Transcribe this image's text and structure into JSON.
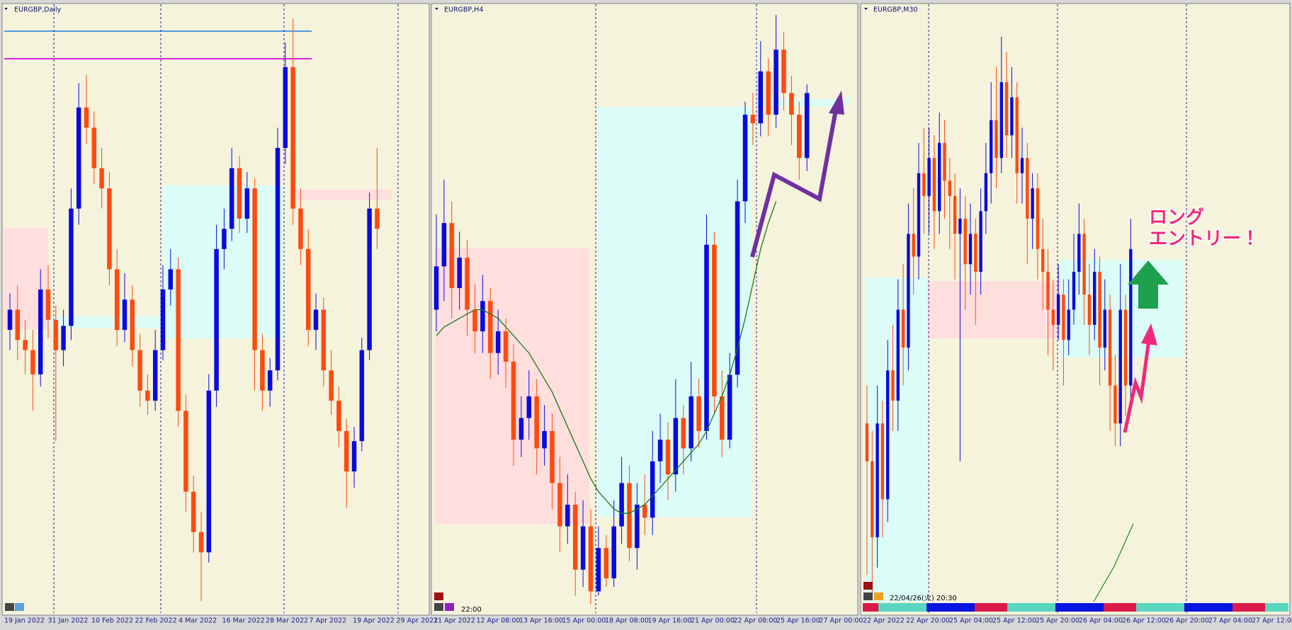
{
  "panels": [
    {
      "title": "EURGBP,Daily",
      "x_labels": [
        "19 Jan 2022",
        "31 Jan 2022",
        "10 Feb 2022",
        "22 Feb 2022",
        "4 Mar 2022",
        "16 Mar 2022",
        "28 Mar 2022",
        "7 Apr 2022",
        "19 Apr 2022",
        "29 Apr 2022"
      ],
      "ylim": [
        0.82,
        0.85
      ],
      "candles": [
        [
          0.834,
          0.8358,
          0.833,
          0.835
        ],
        [
          0.835,
          0.8362,
          0.8325,
          0.8335
        ],
        [
          0.8335,
          0.8345,
          0.8318,
          0.833
        ],
        [
          0.833,
          0.834,
          0.83,
          0.8318
        ],
        [
          0.8318,
          0.837,
          0.8312,
          0.836
        ],
        [
          0.836,
          0.8372,
          0.8336,
          0.8345
        ],
        [
          0.8345,
          0.8352,
          0.8285,
          0.833
        ],
        [
          0.833,
          0.835,
          0.8322,
          0.8342
        ],
        [
          0.8342,
          0.841,
          0.8335,
          0.84
        ],
        [
          0.84,
          0.8462,
          0.8392,
          0.845
        ],
        [
          0.845,
          0.8466,
          0.8432,
          0.844
        ],
        [
          0.844,
          0.8448,
          0.8412,
          0.842
        ],
        [
          0.842,
          0.843,
          0.84,
          0.841
        ],
        [
          0.841,
          0.8418,
          0.8362,
          0.837
        ],
        [
          0.837,
          0.838,
          0.8332,
          0.834
        ],
        [
          0.834,
          0.8368,
          0.8334,
          0.8355
        ],
        [
          0.8355,
          0.8362,
          0.8322,
          0.833
        ],
        [
          0.833,
          0.8338,
          0.8302,
          0.831
        ],
        [
          0.831,
          0.8318,
          0.8298,
          0.8305
        ],
        [
          0.8305,
          0.834,
          0.83,
          0.833
        ],
        [
          0.833,
          0.8372,
          0.8325,
          0.836
        ],
        [
          0.836,
          0.838,
          0.8352,
          0.837
        ],
        [
          0.837,
          0.8376,
          0.8292,
          0.83
        ],
        [
          0.83,
          0.8308,
          0.825,
          0.826
        ],
        [
          0.826,
          0.8268,
          0.823,
          0.824
        ],
        [
          0.824,
          0.825,
          0.8206,
          0.823
        ],
        [
          0.823,
          0.8318,
          0.8225,
          0.831
        ],
        [
          0.831,
          0.8392,
          0.8302,
          0.838
        ],
        [
          0.838,
          0.84,
          0.837,
          0.839
        ],
        [
          0.839,
          0.843,
          0.8384,
          0.842
        ],
        [
          0.842,
          0.8426,
          0.8388,
          0.8395
        ],
        [
          0.8395,
          0.8418,
          0.8388,
          0.841
        ],
        [
          0.841,
          0.8415,
          0.831,
          0.833
        ],
        [
          0.833,
          0.8338,
          0.83,
          0.831
        ],
        [
          0.831,
          0.8326,
          0.8302,
          0.832
        ],
        [
          0.832,
          0.844,
          0.8315,
          0.843
        ],
        [
          0.843,
          0.8482,
          0.8422,
          0.847
        ],
        [
          0.847,
          0.8494,
          0.8392,
          0.84
        ],
        [
          0.84,
          0.841,
          0.8372,
          0.838
        ],
        [
          0.838,
          0.839,
          0.8332,
          0.834
        ],
        [
          0.834,
          0.8358,
          0.833,
          0.835
        ],
        [
          0.835,
          0.8356,
          0.8312,
          0.832
        ],
        [
          0.832,
          0.833,
          0.8298,
          0.8305
        ],
        [
          0.8305,
          0.8312,
          0.8282,
          0.829
        ],
        [
          0.829,
          0.8296,
          0.8252,
          0.827
        ],
        [
          0.827,
          0.8292,
          0.8262,
          0.8285
        ],
        [
          0.8285,
          0.8336,
          0.828,
          0.833
        ],
        [
          0.833,
          0.8408,
          0.8325,
          0.84
        ],
        [
          0.84,
          0.843,
          0.838,
          0.839
        ]
      ]
    },
    {
      "title": "EURGBP,H4",
      "x_labels": [
        "11 Apr 2022",
        "12 Apr 08:00",
        "13 Apr 16:00",
        "15 Apr 00:00",
        "18 Apr 08:00",
        "19 Apr 16:00",
        "21 Apr 00:00",
        "22 Apr 08:00",
        "25 Apr 16:00",
        "27 Apr 00:00"
      ],
      "time_label": "22:00",
      "ylim": [
        0.828,
        0.842
      ],
      "candles": [
        [
          0.835,
          0.8372,
          0.8345,
          0.836
        ],
        [
          0.836,
          0.838,
          0.8352,
          0.837
        ],
        [
          0.837,
          0.8375,
          0.8348,
          0.8355
        ],
        [
          0.8355,
          0.8368,
          0.835,
          0.8362
        ],
        [
          0.8362,
          0.8366,
          0.8344,
          0.835
        ],
        [
          0.835,
          0.8356,
          0.834,
          0.8345
        ],
        [
          0.8345,
          0.8358,
          0.834,
          0.8352
        ],
        [
          0.8352,
          0.8355,
          0.8334,
          0.834
        ],
        [
          0.834,
          0.835,
          0.8335,
          0.8345
        ],
        [
          0.8345,
          0.8348,
          0.8332,
          0.8338
        ],
        [
          0.8338,
          0.8342,
          0.8314,
          0.832
        ],
        [
          0.832,
          0.833,
          0.8316,
          0.8325
        ],
        [
          0.8325,
          0.8336,
          0.832,
          0.833
        ],
        [
          0.833,
          0.8334,
          0.8312,
          0.8318
        ],
        [
          0.8318,
          0.8328,
          0.8314,
          0.8322
        ],
        [
          0.8322,
          0.8326,
          0.8304,
          0.831
        ],
        [
          0.831,
          0.8316,
          0.8294,
          0.83
        ],
        [
          0.83,
          0.8312,
          0.8296,
          0.8305
        ],
        [
          0.8305,
          0.8308,
          0.8284,
          0.829
        ],
        [
          0.829,
          0.8306,
          0.8286,
          0.83
        ],
        [
          0.83,
          0.8304,
          0.8282,
          0.8285
        ],
        [
          0.8285,
          0.83,
          0.8284,
          0.8295
        ],
        [
          0.8295,
          0.8298,
          0.8286,
          0.8288
        ],
        [
          0.8288,
          0.8306,
          0.8286,
          0.83
        ],
        [
          0.83,
          0.8316,
          0.8296,
          0.831
        ],
        [
          0.831,
          0.8314,
          0.8292,
          0.8295
        ],
        [
          0.8295,
          0.831,
          0.829,
          0.8305
        ],
        [
          0.8305,
          0.8312,
          0.8298,
          0.8302
        ],
        [
          0.8302,
          0.8322,
          0.8298,
          0.8315
        ],
        [
          0.8315,
          0.8326,
          0.831,
          0.832
        ],
        [
          0.832,
          0.8324,
          0.8306,
          0.8312
        ],
        [
          0.8312,
          0.8334,
          0.8308,
          0.8325
        ],
        [
          0.8325,
          0.8328,
          0.8312,
          0.8318
        ],
        [
          0.8318,
          0.8338,
          0.8315,
          0.833
        ],
        [
          0.833,
          0.8334,
          0.8318,
          0.8322
        ],
        [
          0.8322,
          0.8372,
          0.832,
          0.8365
        ],
        [
          0.8365,
          0.8368,
          0.8326,
          0.833
        ],
        [
          0.833,
          0.8336,
          0.8316,
          0.832
        ],
        [
          0.832,
          0.834,
          0.8318,
          0.8335
        ],
        [
          0.8335,
          0.838,
          0.8332,
          0.8375
        ],
        [
          0.8375,
          0.8398,
          0.837,
          0.8395
        ],
        [
          0.8395,
          0.84,
          0.8388,
          0.8393
        ],
        [
          0.8393,
          0.8412,
          0.839,
          0.8405
        ],
        [
          0.8405,
          0.8408,
          0.839,
          0.8395
        ],
        [
          0.8395,
          0.8418,
          0.8392,
          0.841
        ],
        [
          0.841,
          0.8414,
          0.8396,
          0.84
        ],
        [
          0.84,
          0.8404,
          0.8388,
          0.8395
        ],
        [
          0.8395,
          0.8398,
          0.838,
          0.8385
        ],
        [
          0.8385,
          0.8402,
          0.8382,
          0.84
        ]
      ],
      "ma": [
        0.8344,
        0.8346,
        0.8347,
        0.8348,
        0.8349,
        0.835,
        0.835,
        0.8349,
        0.8348,
        0.8346,
        0.8344,
        0.8342,
        0.834,
        0.8337,
        0.8334,
        0.8331,
        0.8327,
        0.8323,
        0.8319,
        0.8315,
        0.8311,
        0.8308,
        0.8306,
        0.8304,
        0.8303,
        0.8303,
        0.8304,
        0.8305,
        0.8307,
        0.8309,
        0.8311,
        0.8313,
        0.8315,
        0.8317,
        0.8319,
        0.8322,
        0.8326,
        0.833,
        0.8335,
        0.8341,
        0.8348,
        0.8356,
        0.8364,
        0.837,
        0.8375,
        null,
        null,
        null,
        null
      ]
    },
    {
      "title": "EURGBP,M30",
      "x_labels": [
        "22 Apr 2022",
        "22 Apr 20:00",
        "25 Apr 04:00",
        "25 Apr 12:00",
        "25 Apr 20:00",
        "26 Apr 04:00",
        "26 Apr 12:00",
        "26 Apr 20:00",
        "27 Apr 04:00",
        "27 Apr 12:00"
      ],
      "time_label": "22/04/26(火) 20:30",
      "annotation": [
        "ロング",
        "エントリー！"
      ],
      "ylim": [
        0.834,
        0.842
      ],
      "candles": [
        [
          0.8365,
          0.837,
          0.8345,
          0.836
        ],
        [
          0.836,
          0.8364,
          0.8342,
          0.835
        ],
        [
          0.835,
          0.837,
          0.8346,
          0.8365
        ],
        [
          0.8365,
          0.8368,
          0.835,
          0.8355
        ],
        [
          0.8355,
          0.8376,
          0.8352,
          0.8372
        ],
        [
          0.8372,
          0.8378,
          0.8364,
          0.8368
        ],
        [
          0.8368,
          0.8384,
          0.8364,
          0.838
        ],
        [
          0.838,
          0.8386,
          0.837,
          0.8375
        ],
        [
          0.8375,
          0.8394,
          0.8372,
          0.839
        ],
        [
          0.839,
          0.8396,
          0.8382,
          0.8387
        ],
        [
          0.8387,
          0.8402,
          0.8384,
          0.8398
        ],
        [
          0.8398,
          0.8404,
          0.839,
          0.8395
        ],
        [
          0.8395,
          0.8404,
          0.839,
          0.84
        ],
        [
          0.84,
          0.8403,
          0.8388,
          0.8393
        ],
        [
          0.8393,
          0.8406,
          0.839,
          0.8402
        ],
        [
          0.8402,
          0.8405,
          0.8392,
          0.8397
        ],
        [
          0.8397,
          0.84,
          0.8388,
          0.8395
        ],
        [
          0.8395,
          0.8398,
          0.8384,
          0.839
        ],
        [
          0.839,
          0.8396,
          0.836,
          0.8392
        ],
        [
          0.8392,
          0.8395,
          0.838,
          0.8386
        ],
        [
          0.8386,
          0.8394,
          0.8382,
          0.839
        ],
        [
          0.839,
          0.8392,
          0.8378,
          0.8385
        ],
        [
          0.8385,
          0.8396,
          0.8382,
          0.8393
        ],
        [
          0.8393,
          0.8402,
          0.839,
          0.8398
        ],
        [
          0.8398,
          0.841,
          0.8394,
          0.8405
        ],
        [
          0.8405,
          0.8412,
          0.8396,
          0.84
        ],
        [
          0.84,
          0.8416,
          0.8398,
          0.841
        ],
        [
          0.841,
          0.8414,
          0.84,
          0.8403
        ],
        [
          0.8403,
          0.8412,
          0.84,
          0.8408
        ],
        [
          0.8408,
          0.841,
          0.8394,
          0.8398
        ],
        [
          0.8398,
          0.8404,
          0.8394,
          0.84
        ],
        [
          0.84,
          0.8402,
          0.8386,
          0.8392
        ],
        [
          0.8392,
          0.8398,
          0.8388,
          0.8396
        ],
        [
          0.8396,
          0.8398,
          0.8384,
          0.8388
        ],
        [
          0.8388,
          0.8392,
          0.838,
          0.8385
        ],
        [
          0.8385,
          0.8388,
          0.8374,
          0.838
        ],
        [
          0.838,
          0.8384,
          0.8372,
          0.8378
        ],
        [
          0.8378,
          0.8386,
          0.8376,
          0.8382
        ],
        [
          0.8382,
          0.8384,
          0.837,
          0.8376
        ],
        [
          0.8376,
          0.8384,
          0.8374,
          0.838
        ],
        [
          0.838,
          0.839,
          0.8378,
          0.8385
        ],
        [
          0.8385,
          0.8394,
          0.8382,
          0.839
        ],
        [
          0.839,
          0.8392,
          0.8378,
          0.8382
        ],
        [
          0.8382,
          0.8386,
          0.8374,
          0.8378
        ],
        [
          0.8378,
          0.8388,
          0.8376,
          0.8385
        ],
        [
          0.8385,
          0.8387,
          0.837,
          0.8375
        ],
        [
          0.8375,
          0.8384,
          0.8372,
          0.838
        ],
        [
          0.838,
          0.8382,
          0.8364,
          0.837
        ],
        [
          0.837,
          0.8374,
          0.8362,
          0.8365
        ],
        [
          0.8365,
          0.8386,
          0.8362,
          0.838
        ],
        [
          0.838,
          0.8382,
          0.8366,
          0.837
        ],
        [
          0.837,
          0.8392,
          0.8368,
          0.8388
        ]
      ]
    }
  ]
}
